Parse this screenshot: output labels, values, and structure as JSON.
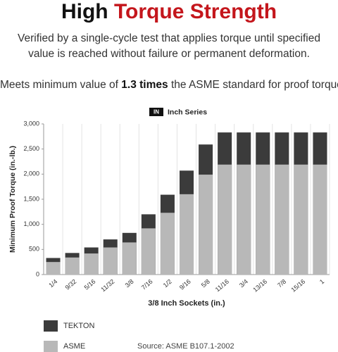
{
  "header": {
    "title_lead": "High",
    "title_accent": "Torque Strength",
    "description": "Verified by a single-cycle test that applies torque until specified value is reached without failure or permanent deformation.",
    "claim_pre": "Meets minimum value of",
    "claim_emphasis": "1.3 times",
    "claim_post": "the ASME standard for proof torque."
  },
  "chart_data": {
    "type": "bar",
    "badge": "IN",
    "subtitle": "Inch Series",
    "x_label": "3/8 Inch Sockets (in.)",
    "y_label": "Minimum Proof Torque (in.-lb.)",
    "categories": [
      "1/4",
      "9/32",
      "5/16",
      "11/32",
      "3/8",
      "7/16",
      "1/2",
      "9/16",
      "5/8",
      "11/16",
      "3/4",
      "13/16",
      "7/8",
      "15/16",
      "1"
    ],
    "series": [
      {
        "name": "TEKTON",
        "color": "#3b3b3b",
        "values": [
          330,
          430,
          540,
          700,
          830,
          1200,
          1590,
          2070,
          2590,
          2830,
          2830,
          2830,
          2830,
          2830,
          2830
        ]
      },
      {
        "name": "ASME",
        "color": "#b8b8b8",
        "values": [
          250,
          340,
          420,
          540,
          640,
          920,
          1230,
          1600,
          1990,
          2190,
          2190,
          2190,
          2190,
          2190,
          2190
        ]
      }
    ],
    "ylim": [
      0,
      3000
    ],
    "yticks": [
      0,
      500,
      {
        "value": 1000,
        "label": "1,000"
      },
      {
        "value": 1500,
        "label": "1,500"
      },
      {
        "value": 2000,
        "label": "2,000"
      },
      {
        "value": 2500,
        "label": "2,500"
      },
      {
        "value": 3000,
        "label": "3,000"
      }
    ],
    "source": "Source: ASME B107.1-2002"
  }
}
